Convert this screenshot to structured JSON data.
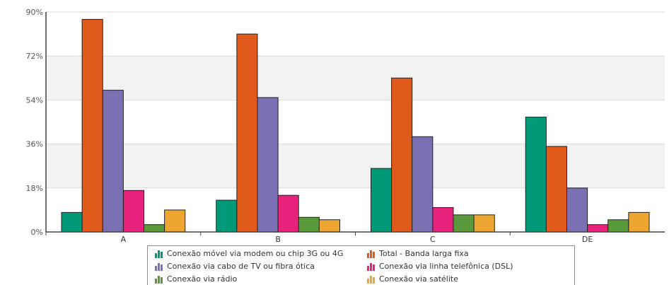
{
  "chart_data": {
    "type": "bar",
    "title": "",
    "xlabel": "",
    "ylabel": "",
    "ylim": [
      0,
      90
    ],
    "yticks": [
      "0%",
      "18%",
      "36%",
      "54%",
      "72%",
      "90%"
    ],
    "categories": [
      "A",
      "B",
      "C",
      "DE"
    ],
    "grid": true,
    "legend_position": "bottom",
    "series": [
      {
        "name": "Conexão móvel via modem ou chip 3G ou 4G",
        "color": "#009a78",
        "values": [
          8,
          13,
          26,
          47
        ]
      },
      {
        "name": "Total - Banda larga fixa",
        "color": "#e05a1c",
        "values": [
          87,
          81,
          63,
          35
        ]
      },
      {
        "name": "Conexão via cabo de TV ou fibra ótica",
        "color": "#7b70b2",
        "values": [
          58,
          55,
          39,
          18
        ]
      },
      {
        "name": "Conexão via linha telefônica (DSL)",
        "color": "#e8237d",
        "values": [
          17,
          15,
          10,
          3
        ]
      },
      {
        "name": "Conexão via rádio",
        "color": "#5b9a3c",
        "values": [
          3,
          6,
          7,
          5
        ]
      },
      {
        "name": "Conexão via satélite",
        "color": "#eca631",
        "values": [
          9,
          5,
          7,
          8
        ]
      }
    ]
  }
}
